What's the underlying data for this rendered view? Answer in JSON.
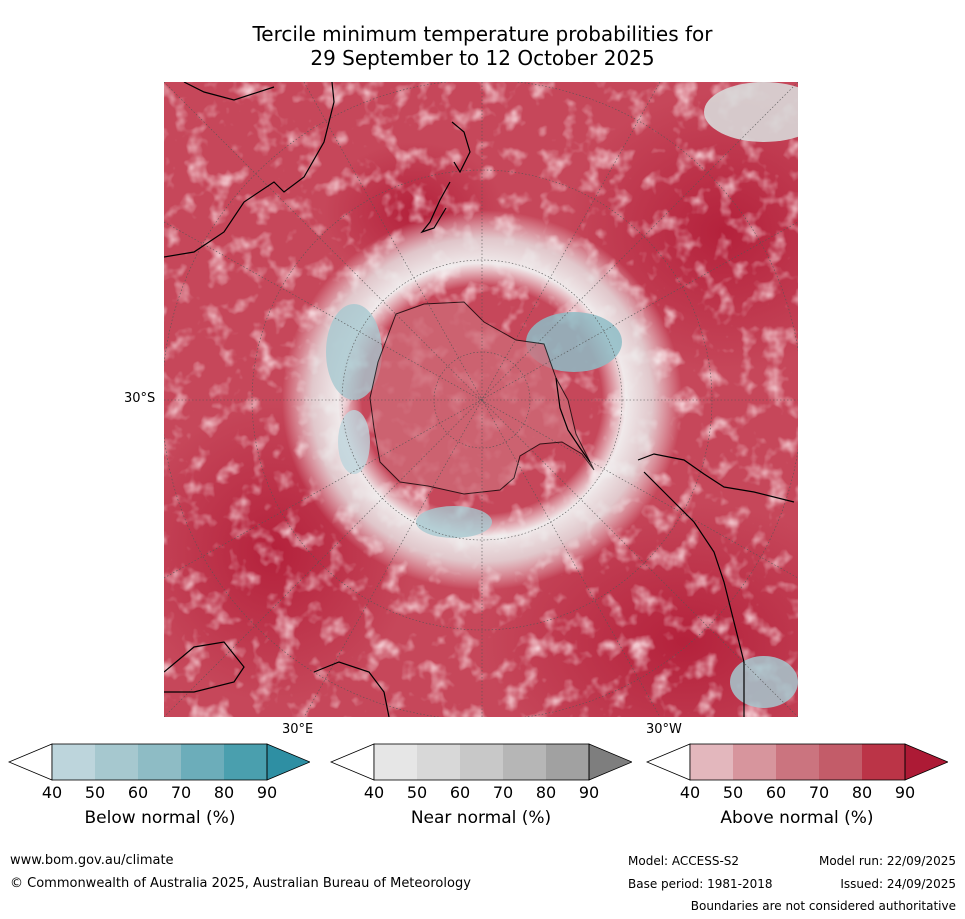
{
  "title": {
    "line1": "Tercile minimum temperature probabilities for",
    "line2": "29 September to 12 October 2025"
  },
  "map": {
    "labels": {
      "lat": "30°S",
      "lon_e": "30°E",
      "lon_w": "30°W"
    }
  },
  "legend": [
    {
      "label": "Below normal (%)",
      "ticks": [
        "40",
        "50",
        "60",
        "70",
        "80",
        "90"
      ],
      "colors": [
        "#ffffff",
        "#bdd5dc",
        "#a6c8cf",
        "#8ebcc5",
        "#6cadba",
        "#4a9fae",
        "#2e8fa3"
      ]
    },
    {
      "label": "Near normal (%)",
      "ticks": [
        "40",
        "50",
        "60",
        "70",
        "80",
        "90"
      ],
      "colors": [
        "#ffffff",
        "#e6e6e6",
        "#d8d8d8",
        "#c8c8c8",
        "#b6b6b6",
        "#a1a1a1",
        "#7e7e7e"
      ]
    },
    {
      "label": "Above normal (%)",
      "ticks": [
        "40",
        "50",
        "60",
        "70",
        "80",
        "90"
      ],
      "colors": [
        "#ffffff",
        "#e3b7bd",
        "#d7959d",
        "#cb747f",
        "#c35c69",
        "#bb3447",
        "#ad1a35"
      ]
    }
  ],
  "footer": {
    "website": "www.bom.gov.au/climate",
    "copyright": "© Commonwealth of Australia 2025, Australian Bureau of Meteorology",
    "model": "Model: ACCESS-S2",
    "base_period": "Base period: 1981-2018",
    "model_run": "Model run: 22/09/2025",
    "issued": "Issued: 24/09/2025",
    "disclaimer": "Boundaries are not considered authoritative"
  }
}
